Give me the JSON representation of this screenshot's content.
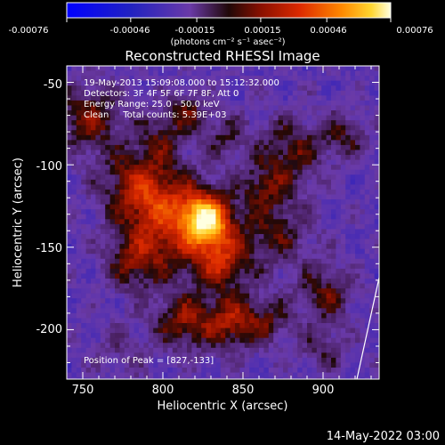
{
  "colorbar": {
    "ticks": [
      "-0.00076",
      "-0.00046",
      "-0.00015",
      "0.00015",
      "0.00046",
      "0.00076"
    ],
    "units": "(photons cm⁻² s⁻¹ asec⁻²)"
  },
  "footer": {
    "timestamp": "14-May-2022 03:00"
  },
  "chart_data": {
    "type": "heatmap",
    "title": "Reconstructed RHESSI Image",
    "xlabel": "Heliocentric X (arcsec)",
    "ylabel": "Heliocentric Y (arcsec)",
    "xlim": [
      740,
      935
    ],
    "ylim": [
      -230,
      -40
    ],
    "x_ticks": [
      750,
      800,
      850,
      900
    ],
    "y_ticks": [
      -50,
      -100,
      -150,
      -200
    ],
    "zlim": [
      -0.00076,
      0.00076
    ],
    "annotations": [
      "19-May-2013 15:09:08.000 to 15:12:32.000",
      "Detectors: 3F 4F 5F 6F 7F 8F, Att 0",
      "Energy Range: 25.0 - 50.0 keV",
      "Clean     Total counts: 5.39E+03"
    ],
    "peak_label": "Position of Peak = [827,-133]",
    "peak": [
      827,
      -133
    ],
    "sources": [
      {
        "x": 827,
        "y": -133,
        "amp": 0.00076,
        "sigma": 10
      },
      {
        "x": 806,
        "y": -135,
        "amp": 0.00045,
        "sigma": 20
      },
      {
        "x": 836,
        "y": -158,
        "amp": 0.00042,
        "sigma": 12
      },
      {
        "x": 843,
        "y": -195,
        "amp": 0.0004,
        "sigma": 12
      },
      {
        "x": 813,
        "y": -195,
        "amp": 0.00036,
        "sigma": 12
      },
      {
        "x": 785,
        "y": -112,
        "amp": 0.00036,
        "sigma": 16
      },
      {
        "x": 754,
        "y": -72,
        "amp": 0.00034,
        "sigma": 14
      },
      {
        "x": 782,
        "y": -160,
        "amp": 0.00028,
        "sigma": 12
      },
      {
        "x": 870,
        "y": -140,
        "amp": 0.00026,
        "sigma": 16
      },
      {
        "x": 880,
        "y": -92,
        "amp": 0.0003,
        "sigma": 14
      },
      {
        "x": 913,
        "y": -82,
        "amp": 0.00024,
        "sigma": 10
      },
      {
        "x": 902,
        "y": -178,
        "amp": 0.00028,
        "sigma": 12
      },
      {
        "x": 862,
        "y": -113,
        "amp": 0.00022,
        "sigma": 10
      },
      {
        "x": 798,
        "y": -82,
        "amp": 0.0002,
        "sigma": 10
      },
      {
        "x": 815,
        "y": -68,
        "amp": 0.00026,
        "sigma": 9
      },
      {
        "x": 840,
        "y": -82,
        "amp": 0.0002,
        "sigma": 10
      },
      {
        "x": 867,
        "y": -195,
        "amp": 0.00022,
        "sigma": 10
      },
      {
        "x": 775,
        "y": -212,
        "amp": 0.00012,
        "sigma": 12
      },
      {
        "x": 900,
        "y": -212,
        "amp": 0.00018,
        "sigma": 10
      }
    ]
  }
}
